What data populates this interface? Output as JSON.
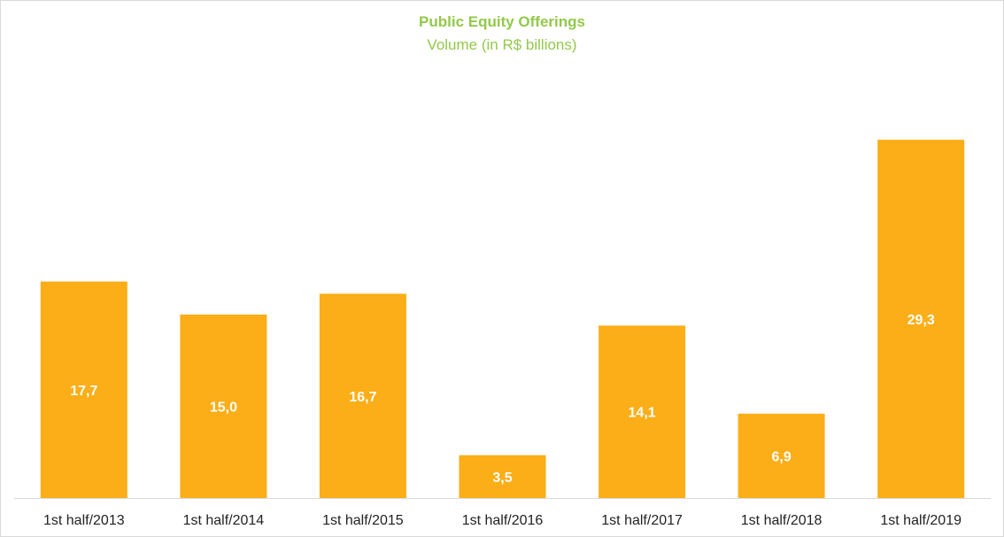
{
  "chart_data": {
    "type": "bar",
    "title": "Public Equity Offerings",
    "subtitle": "Volume (in R$ billions)",
    "categories": [
      "1st half/2013",
      "1st half/2014",
      "1st half/2015",
      "1st half/2016",
      "1st half/2017",
      "1st half/2018",
      "1st half/2019"
    ],
    "values": [
      17.7,
      15.0,
      16.7,
      3.5,
      14.1,
      6.9,
      29.3
    ],
    "value_labels": [
      "17,7",
      "15,0",
      "16,7",
      "3,5",
      "14,1",
      "6,9",
      "29,3"
    ],
    "xlabel": "",
    "ylabel": "",
    "ylim": [
      0,
      30
    ],
    "grid": false,
    "legend": "none",
    "colors": {
      "bar": "#fbae17",
      "title": "#92c94a",
      "baseline": "#d9d9d9"
    }
  }
}
